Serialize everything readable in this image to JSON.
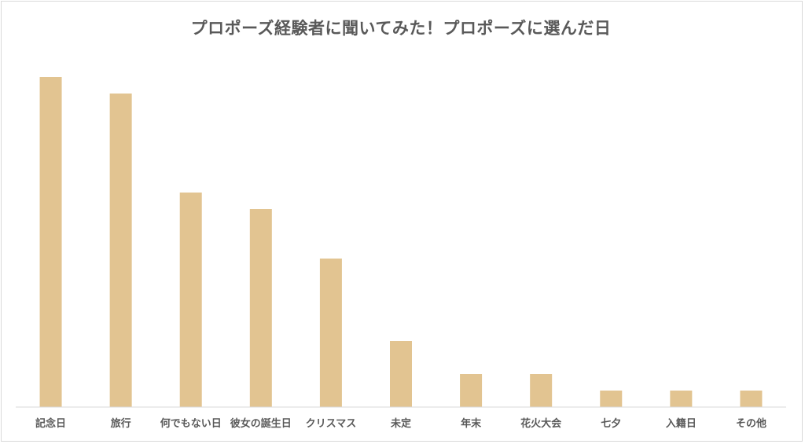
{
  "chart_data": {
    "type": "bar",
    "title": "プロポーズ経験者に聞いてみた！プロポーズに選んだ日",
    "categories": [
      "記念日",
      "旅行",
      "何でもない日",
      "彼女の誕生日",
      "クリスマス",
      "未定",
      "年末",
      "花火大会",
      "七夕",
      "入籍日",
      "その他"
    ],
    "values": [
      20,
      19,
      13,
      12,
      9,
      4,
      2,
      2,
      1,
      1,
      1
    ],
    "xlabel": "",
    "ylabel": "",
    "ylim": [
      0,
      20
    ],
    "grid": false,
    "legend": "none",
    "bar_color": "#E2C491",
    "axis_color": "#D9D9D9"
  }
}
